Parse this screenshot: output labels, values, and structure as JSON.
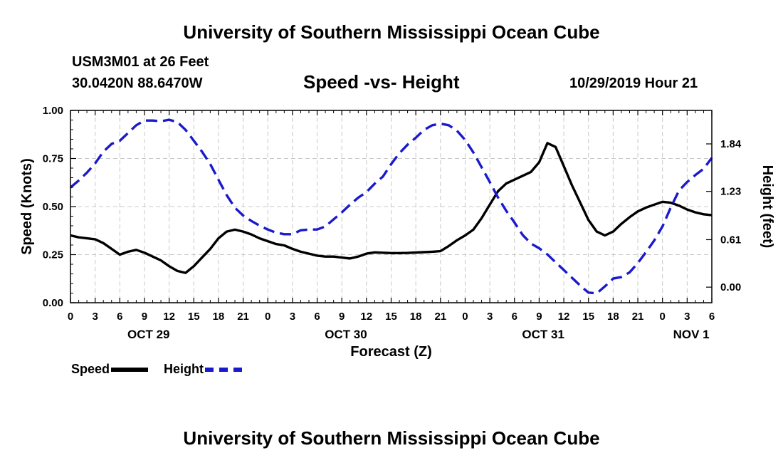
{
  "header": {
    "top_title": "University of Southern Mississippi Ocean Cube",
    "station": "USM3M01 at 26 Feet",
    "coordinates": "30.0420N 88.6470W",
    "chart_title": "Speed -vs- Height",
    "timestamp": "10/29/2019 Hour 21"
  },
  "footer": {
    "bottom_title": "University of Southern Mississippi Ocean Cube"
  },
  "legend": {
    "speed_label": "Speed",
    "height_label": "Height",
    "speed_color": "#000000",
    "height_color": "#1a1acc"
  },
  "chart_data": {
    "type": "line",
    "title": "Speed -vs- Height",
    "xlabel": "Forecast (Z)",
    "ylabel_left": "Speed (Knots)",
    "ylabel_right": "Height (feet)",
    "x_range_hours": [
      0,
      78
    ],
    "x_tick_labels": [
      "0",
      "3",
      "6",
      "9",
      "12",
      "15",
      "18",
      "21",
      "0",
      "3",
      "6",
      "9",
      "12",
      "15",
      "18",
      "21",
      "0",
      "3",
      "6",
      "9",
      "12",
      "15",
      "18",
      "21",
      "0",
      "3",
      "6"
    ],
    "date_labels": [
      {
        "label": "OCT 29",
        "hour": 9.5
      },
      {
        "label": "OCT 30",
        "hour": 33.5
      },
      {
        "label": "OCT 31",
        "hour": 57.5
      },
      {
        "label": "NOV 1",
        "hour": 75.5
      }
    ],
    "left_axis": {
      "min": 0,
      "max": 1,
      "ticks": [
        "0.00",
        "0.25",
        "0.50",
        "0.75",
        "1.00"
      ],
      "tick_values": [
        0,
        0.25,
        0.5,
        0.75,
        1.0
      ]
    },
    "right_axis": {
      "min": -0.2,
      "max": 2.27,
      "ticks": [
        "0.00",
        "0.61",
        "1.23",
        "1.84"
      ],
      "tick_values": [
        0,
        0.61,
        1.23,
        1.84
      ]
    },
    "grid": true,
    "series": [
      {
        "name": "Speed",
        "axis": "left",
        "style": "solid",
        "x": [
          0,
          1,
          2,
          3,
          4,
          5,
          6,
          7,
          8,
          9,
          10,
          11,
          12,
          13,
          14,
          15,
          16,
          17,
          18,
          19,
          20,
          21,
          22,
          23,
          24,
          25,
          26,
          27,
          28,
          29,
          30,
          31,
          32,
          33,
          34,
          35,
          36,
          37,
          38,
          39,
          40,
          41,
          42,
          43,
          44,
          45,
          46,
          47,
          48,
          49,
          50,
          51,
          52,
          53,
          54,
          55,
          56,
          57,
          58,
          59,
          60,
          61,
          62,
          63,
          64,
          65,
          66,
          67,
          68,
          69,
          70,
          71,
          72,
          73,
          74,
          75,
          76,
          77,
          78
        ],
        "values": [
          0.35,
          0.34,
          0.335,
          0.33,
          0.31,
          0.28,
          0.25,
          0.265,
          0.275,
          0.26,
          0.24,
          0.22,
          0.19,
          0.165,
          0.155,
          0.19,
          0.235,
          0.28,
          0.335,
          0.37,
          0.38,
          0.37,
          0.355,
          0.335,
          0.32,
          0.305,
          0.298,
          0.28,
          0.265,
          0.255,
          0.245,
          0.24,
          0.24,
          0.235,
          0.23,
          0.24,
          0.255,
          0.262,
          0.26,
          0.258,
          0.258,
          0.259,
          0.261,
          0.263,
          0.265,
          0.268,
          0.295,
          0.325,
          0.35,
          0.38,
          0.44,
          0.51,
          0.58,
          0.62,
          0.64,
          0.66,
          0.68,
          0.73,
          0.83,
          0.81,
          0.71,
          0.61,
          0.52,
          0.43,
          0.37,
          0.35,
          0.37,
          0.41,
          0.445,
          0.475,
          0.495,
          0.51,
          0.525,
          0.52,
          0.505,
          0.485,
          0.47,
          0.46,
          0.455
        ]
      },
      {
        "name": "Height",
        "axis": "right",
        "style": "dashed",
        "x": [
          0,
          1,
          2,
          3,
          4,
          5,
          6,
          7,
          8,
          9,
          10,
          11,
          12,
          13,
          14,
          15,
          16,
          17,
          18,
          19,
          20,
          21,
          22,
          23,
          24,
          25,
          26,
          27,
          28,
          29,
          30,
          31,
          32,
          33,
          34,
          35,
          36,
          37,
          38,
          39,
          40,
          41,
          42,
          43,
          44,
          45,
          46,
          47,
          48,
          49,
          50,
          51,
          52,
          53,
          54,
          55,
          56,
          57,
          58,
          59,
          60,
          61,
          62,
          63,
          64,
          65,
          66,
          67,
          68,
          69,
          70,
          71,
          72,
          73,
          74,
          75,
          76,
          77,
          78
        ],
        "values": [
          1.28,
          1.37,
          1.47,
          1.59,
          1.74,
          1.84,
          1.88,
          1.98,
          2.08,
          2.14,
          2.14,
          2.13,
          2.15,
          2.12,
          2.02,
          1.88,
          1.74,
          1.58,
          1.38,
          1.18,
          1.02,
          0.92,
          0.85,
          0.79,
          0.74,
          0.7,
          0.68,
          0.68,
          0.73,
          0.74,
          0.74,
          0.78,
          0.87,
          0.96,
          1.06,
          1.15,
          1.22,
          1.33,
          1.42,
          1.58,
          1.72,
          1.83,
          1.92,
          2.02,
          2.08,
          2.1,
          2.08,
          2.01,
          1.89,
          1.73,
          1.54,
          1.35,
          1.15,
          0.98,
          0.83,
          0.67,
          0.56,
          0.5,
          0.42,
          0.32,
          0.22,
          0.12,
          0.02,
          -0.07,
          -0.08,
          0.01,
          0.11,
          0.13,
          0.19,
          0.31,
          0.45,
          0.6,
          0.78,
          1.02,
          1.24,
          1.35,
          1.44,
          1.52,
          1.66
        ]
      }
    ]
  }
}
